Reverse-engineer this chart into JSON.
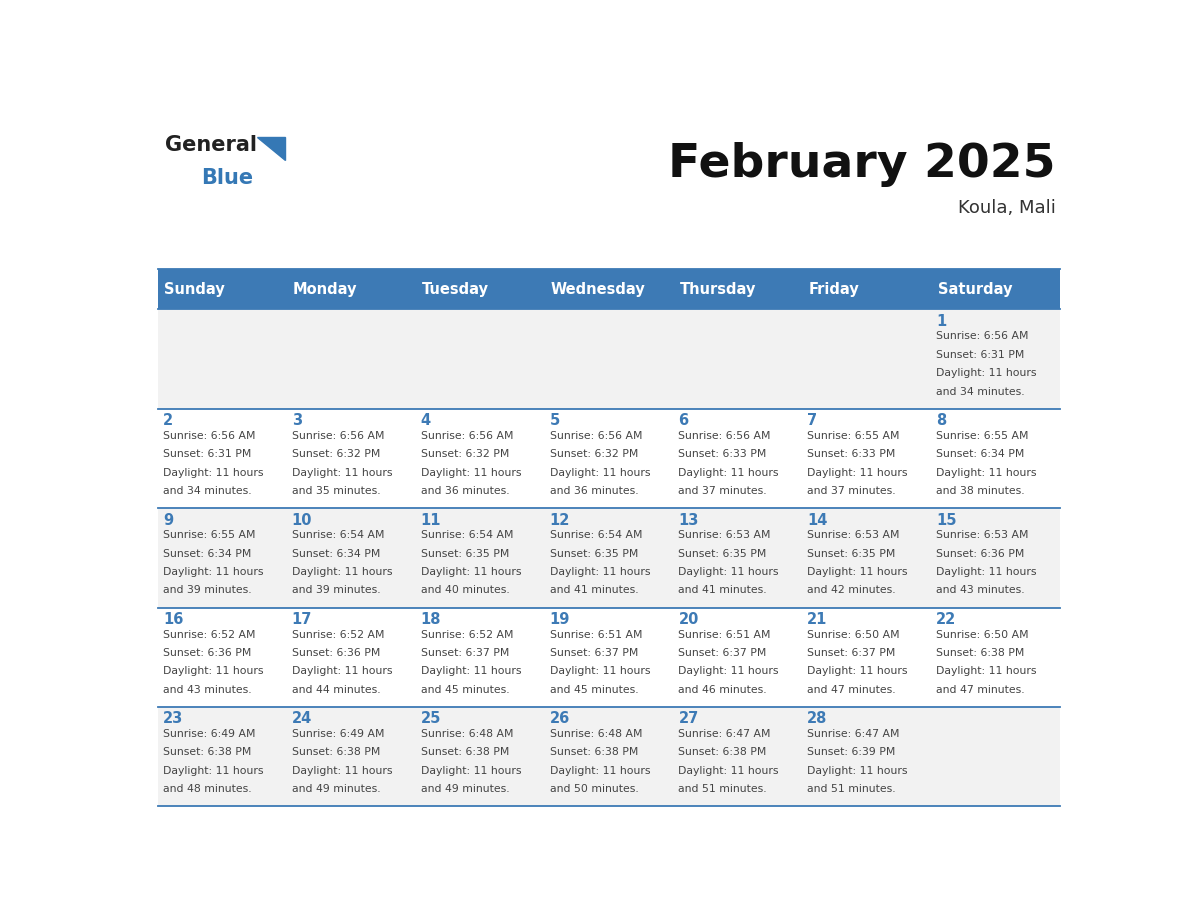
{
  "title": "February 2025",
  "subtitle": "Koula, Mali",
  "days_of_week": [
    "Sunday",
    "Monday",
    "Tuesday",
    "Wednesday",
    "Thursday",
    "Friday",
    "Saturday"
  ],
  "header_bg": "#3d7ab5",
  "header_text": "#ffffff",
  "row_bg_odd": "#f2f2f2",
  "row_bg_even": "#ffffff",
  "day_number_color": "#3d7ab5",
  "info_text_color": "#444444",
  "border_color": "#3d7ab5",
  "logo_general_color": "#222222",
  "logo_blue_color": "#3578b5",
  "calendar_data": [
    [
      {
        "day": null,
        "sunrise": null,
        "sunset": null,
        "daylight": null
      },
      {
        "day": null,
        "sunrise": null,
        "sunset": null,
        "daylight": null
      },
      {
        "day": null,
        "sunrise": null,
        "sunset": null,
        "daylight": null
      },
      {
        "day": null,
        "sunrise": null,
        "sunset": null,
        "daylight": null
      },
      {
        "day": null,
        "sunrise": null,
        "sunset": null,
        "daylight": null
      },
      {
        "day": null,
        "sunrise": null,
        "sunset": null,
        "daylight": null
      },
      {
        "day": 1,
        "sunrise": "6:56 AM",
        "sunset": "6:31 PM",
        "daylight": "11 hours and 34 minutes."
      }
    ],
    [
      {
        "day": 2,
        "sunrise": "6:56 AM",
        "sunset": "6:31 PM",
        "daylight": "11 hours and 34 minutes."
      },
      {
        "day": 3,
        "sunrise": "6:56 AM",
        "sunset": "6:32 PM",
        "daylight": "11 hours and 35 minutes."
      },
      {
        "day": 4,
        "sunrise": "6:56 AM",
        "sunset": "6:32 PM",
        "daylight": "11 hours and 36 minutes."
      },
      {
        "day": 5,
        "sunrise": "6:56 AM",
        "sunset": "6:32 PM",
        "daylight": "11 hours and 36 minutes."
      },
      {
        "day": 6,
        "sunrise": "6:56 AM",
        "sunset": "6:33 PM",
        "daylight": "11 hours and 37 minutes."
      },
      {
        "day": 7,
        "sunrise": "6:55 AM",
        "sunset": "6:33 PM",
        "daylight": "11 hours and 37 minutes."
      },
      {
        "day": 8,
        "sunrise": "6:55 AM",
        "sunset": "6:34 PM",
        "daylight": "11 hours and 38 minutes."
      }
    ],
    [
      {
        "day": 9,
        "sunrise": "6:55 AM",
        "sunset": "6:34 PM",
        "daylight": "11 hours and 39 minutes."
      },
      {
        "day": 10,
        "sunrise": "6:54 AM",
        "sunset": "6:34 PM",
        "daylight": "11 hours and 39 minutes."
      },
      {
        "day": 11,
        "sunrise": "6:54 AM",
        "sunset": "6:35 PM",
        "daylight": "11 hours and 40 minutes."
      },
      {
        "day": 12,
        "sunrise": "6:54 AM",
        "sunset": "6:35 PM",
        "daylight": "11 hours and 41 minutes."
      },
      {
        "day": 13,
        "sunrise": "6:53 AM",
        "sunset": "6:35 PM",
        "daylight": "11 hours and 41 minutes."
      },
      {
        "day": 14,
        "sunrise": "6:53 AM",
        "sunset": "6:35 PM",
        "daylight": "11 hours and 42 minutes."
      },
      {
        "day": 15,
        "sunrise": "6:53 AM",
        "sunset": "6:36 PM",
        "daylight": "11 hours and 43 minutes."
      }
    ],
    [
      {
        "day": 16,
        "sunrise": "6:52 AM",
        "sunset": "6:36 PM",
        "daylight": "11 hours and 43 minutes."
      },
      {
        "day": 17,
        "sunrise": "6:52 AM",
        "sunset": "6:36 PM",
        "daylight": "11 hours and 44 minutes."
      },
      {
        "day": 18,
        "sunrise": "6:52 AM",
        "sunset": "6:37 PM",
        "daylight": "11 hours and 45 minutes."
      },
      {
        "day": 19,
        "sunrise": "6:51 AM",
        "sunset": "6:37 PM",
        "daylight": "11 hours and 45 minutes."
      },
      {
        "day": 20,
        "sunrise": "6:51 AM",
        "sunset": "6:37 PM",
        "daylight": "11 hours and 46 minutes."
      },
      {
        "day": 21,
        "sunrise": "6:50 AM",
        "sunset": "6:37 PM",
        "daylight": "11 hours and 47 minutes."
      },
      {
        "day": 22,
        "sunrise": "6:50 AM",
        "sunset": "6:38 PM",
        "daylight": "11 hours and 47 minutes."
      }
    ],
    [
      {
        "day": 23,
        "sunrise": "6:49 AM",
        "sunset": "6:38 PM",
        "daylight": "11 hours and 48 minutes."
      },
      {
        "day": 24,
        "sunrise": "6:49 AM",
        "sunset": "6:38 PM",
        "daylight": "11 hours and 49 minutes."
      },
      {
        "day": 25,
        "sunrise": "6:48 AM",
        "sunset": "6:38 PM",
        "daylight": "11 hours and 49 minutes."
      },
      {
        "day": 26,
        "sunrise": "6:48 AM",
        "sunset": "6:38 PM",
        "daylight": "11 hours and 50 minutes."
      },
      {
        "day": 27,
        "sunrise": "6:47 AM",
        "sunset": "6:38 PM",
        "daylight": "11 hours and 51 minutes."
      },
      {
        "day": 28,
        "sunrise": "6:47 AM",
        "sunset": "6:39 PM",
        "daylight": "11 hours and 51 minutes."
      },
      {
        "day": null,
        "sunrise": null,
        "sunset": null,
        "daylight": null
      }
    ]
  ]
}
